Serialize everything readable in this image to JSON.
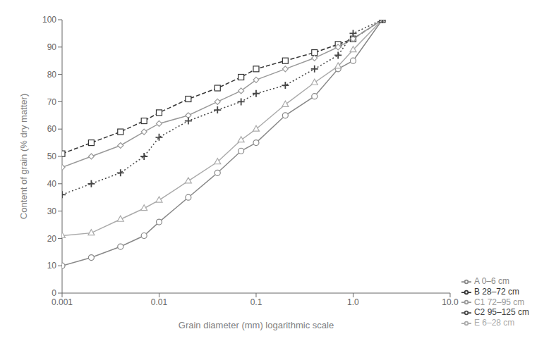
{
  "chart_data": {
    "type": "line",
    "xlabel": "Grain diameter (mm) logarithmic scale",
    "ylabel": "Content of grain (% dry matter)",
    "x": [
      0.001,
      0.002,
      0.004,
      0.007,
      0.01,
      0.02,
      0.04,
      0.07,
      0.1,
      0.2,
      0.4,
      0.7,
      1.0,
      2.0
    ],
    "series": [
      {
        "name": "A 0–6 cm",
        "color": "#888888",
        "marker": "circle",
        "line_style": "solid",
        "values": [
          10,
          13,
          17,
          21,
          26,
          35,
          44,
          52,
          55,
          65,
          72,
          82,
          85,
          100
        ]
      },
      {
        "name": "E 6–28 cm",
        "color": "#aaaaaa",
        "marker": "triangle",
        "line_style": "solid",
        "values": [
          21,
          22,
          27,
          31,
          34,
          41,
          48,
          56,
          60,
          69,
          77,
          83,
          89,
          100
        ]
      },
      {
        "name": "B 28–72 cm",
        "color": "#333333",
        "marker": "square",
        "line_style": "dashed",
        "values": [
          51,
          55,
          59,
          63,
          66,
          71,
          75,
          79,
          82,
          85,
          88,
          91,
          93,
          100
        ]
      },
      {
        "name": "C1 72–95 cm",
        "color": "#999999",
        "marker": "diamond",
        "line_style": "solid",
        "values": [
          46,
          50,
          54,
          59,
          62,
          65,
          70,
          74,
          78,
          82,
          86,
          90,
          93,
          100
        ]
      },
      {
        "name": "C2 95–125 cm",
        "color": "#444444",
        "marker": "plus",
        "line_style": "dotted",
        "values": [
          36,
          40,
          44,
          50,
          57,
          63,
          67,
          70,
          73,
          76,
          82,
          87,
          95,
          100
        ]
      }
    ],
    "log": "x",
    "xlim": [
      0.001,
      10.0
    ],
    "ylim": [
      0,
      100
    ],
    "xticks": [
      0.001,
      0.01,
      0.1,
      {
        "value": 1.0,
        "label": "1.0"
      },
      {
        "value": 10.0,
        "label": "10.0"
      }
    ],
    "yticks": [
      0,
      10,
      20,
      30,
      40,
      50,
      60,
      70,
      80,
      90,
      100
    ],
    "grid": false,
    "legend": "lower right"
  }
}
